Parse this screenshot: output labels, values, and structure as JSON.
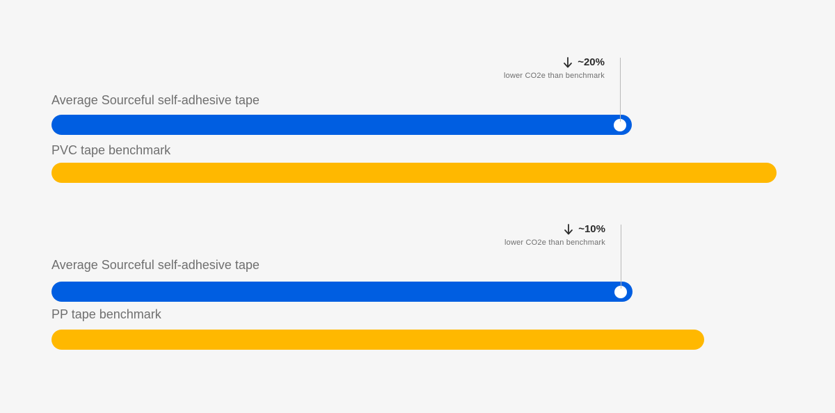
{
  "colors": {
    "background": "#f6f6f6",
    "sourceful": "#005ee1",
    "benchmark": "#ffb800",
    "marker": "#ffffff",
    "label_text": "#6f6f6f",
    "annotation_text": "#2b2b2b"
  },
  "chart_data": [
    {
      "type": "bar",
      "orientation": "horizontal",
      "categories": [
        "Average Sourceful self-adhesive tape",
        "PVC tape benchmark"
      ],
      "values": [
        80,
        100
      ],
      "value_unit": "relative CO2e (benchmark = 100)",
      "colors": [
        "#005ee1",
        "#ffb800"
      ],
      "annotation": {
        "arrow": "down-arrow-icon",
        "percent": "~20%",
        "text": "lower CO2e than benchmark"
      },
      "grid": false,
      "legend": "none"
    },
    {
      "type": "bar",
      "orientation": "horizontal",
      "categories": [
        "Average Sourceful self-adhesive tape",
        "PP tape benchmark"
      ],
      "values": [
        89,
        100
      ],
      "value_unit": "relative CO2e (benchmark = 100)",
      "colors": [
        "#005ee1",
        "#ffb800"
      ],
      "annotation": {
        "arrow": "down-arrow-icon",
        "percent": "~10%",
        "text": "lower CO2e than benchmark"
      },
      "grid": false,
      "legend": "none"
    }
  ]
}
